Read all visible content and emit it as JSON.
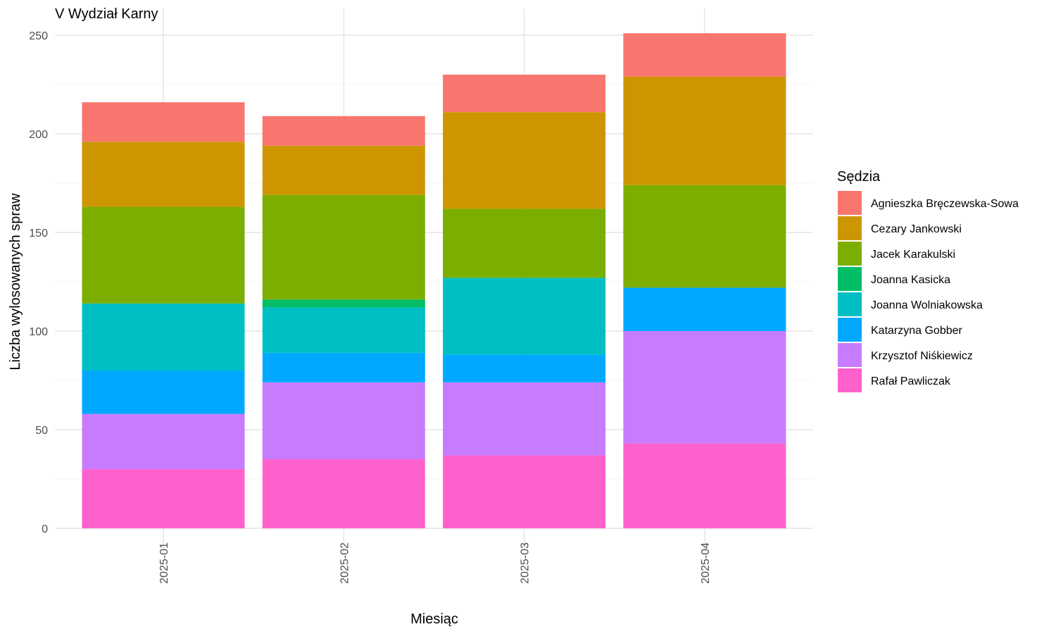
{
  "chart_data": {
    "type": "bar",
    "stacked": true,
    "title": "V Wydział Karny",
    "xlabel": "Miesiąc",
    "ylabel": "Liczba wylosowanych spraw",
    "ylim": [
      0,
      250
    ],
    "yticks": [
      0,
      50,
      100,
      150,
      200,
      250
    ],
    "grid": true,
    "legend_title": "Sędzia",
    "legend_position": "right",
    "categories": [
      "2025-01",
      "2025-02",
      "2025-03",
      "2025-04"
    ],
    "series": [
      {
        "name": "Agnieszka Bręczewska-Sowa",
        "color": "#F8766D",
        "values": [
          20,
          15,
          19,
          22
        ]
      },
      {
        "name": "Cezary Jankowski",
        "color": "#CD9600",
        "values": [
          33,
          25,
          49,
          55
        ]
      },
      {
        "name": "Jacek Karakulski",
        "color": "#7CAE00",
        "values": [
          49,
          53,
          35,
          52
        ]
      },
      {
        "name": "Joanna Kasicka",
        "color": "#00BE67",
        "values": [
          0,
          4,
          0,
          0
        ]
      },
      {
        "name": "Joanna Wolniakowska",
        "color": "#00BFC4",
        "values": [
          34,
          23,
          39,
          0
        ]
      },
      {
        "name": "Katarzyna Gobber",
        "color": "#00A9FF",
        "values": [
          22,
          15,
          14,
          22
        ]
      },
      {
        "name": "Krzysztof Niśkiewicz",
        "color": "#C77CFF",
        "values": [
          28,
          39,
          37,
          57
        ]
      },
      {
        "name": "Rafał Pawliczak",
        "color": "#FF61CC",
        "values": [
          30,
          35,
          37,
          43
        ]
      }
    ]
  }
}
